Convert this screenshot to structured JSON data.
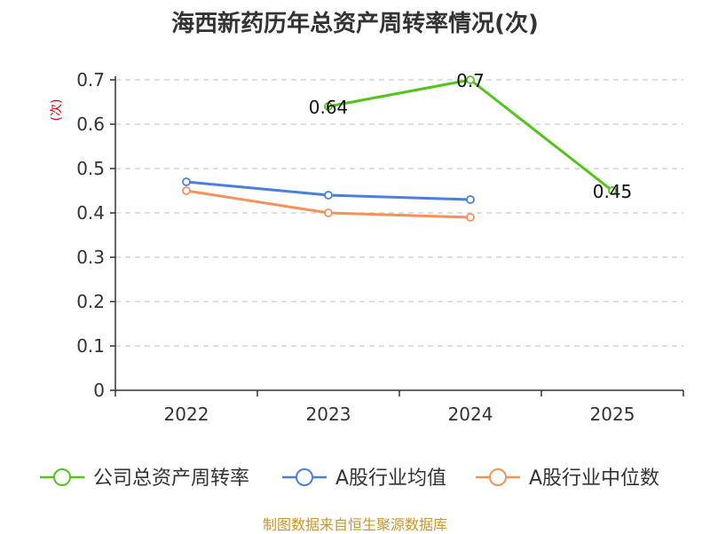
{
  "chart_data": {
    "type": "line",
    "title": "海西新药历年总资产周转率情况(次)",
    "ylabel": "(次)",
    "xlabel": "",
    "categories": [
      "2022",
      "2023",
      "2024",
      "2025"
    ],
    "y_ticks": [
      "0",
      "0.1",
      "0.2",
      "0.3",
      "0.4",
      "0.5",
      "0.6",
      "0.7"
    ],
    "ylim": [
      0,
      0.7
    ],
    "grid": true,
    "legend_position": "bottom",
    "series": [
      {
        "name": "公司总资产周转率",
        "color": "#52c41a",
        "values": [
          null,
          0.64,
          0.7,
          0.45
        ],
        "labels": [
          null,
          "0.64",
          "0.7",
          "0.45"
        ]
      },
      {
        "name": "A股行业均值",
        "color": "#4a7fe0",
        "values": [
          0.47,
          0.44,
          0.43,
          null
        ]
      },
      {
        "name": "A股行业中位数",
        "color": "#f5915a",
        "values": [
          0.45,
          0.4,
          0.39,
          null
        ]
      }
    ]
  },
  "source_note": "制图数据来自恒生聚源数据库"
}
